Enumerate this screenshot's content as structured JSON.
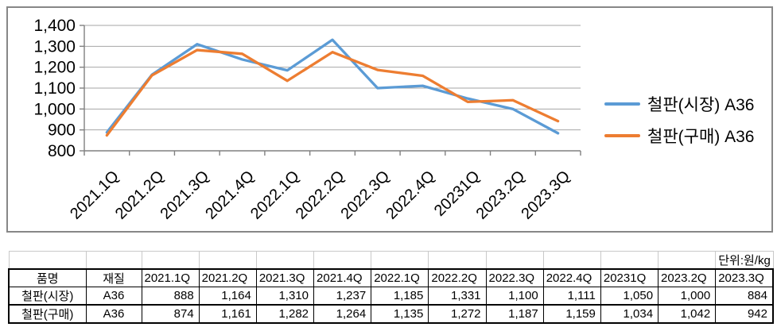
{
  "chart": {
    "legend": [
      {
        "label": "철판(시장) A36"
      },
      {
        "label": "철판(구매) A36"
      }
    ]
  },
  "chart_data": {
    "type": "line",
    "categories": [
      "2021.1Q",
      "2021.2Q",
      "2021.3Q",
      "2021.4Q",
      "2022.1Q",
      "2022.2Q",
      "2022.3Q",
      "2022.4Q",
      "20231Q",
      "2023.2Q",
      "2023.3Q"
    ],
    "series": [
      {
        "name": "철판(시장) A36",
        "color": "#5B9BD5",
        "values": [
          888,
          1164,
          1310,
          1237,
          1185,
          1331,
          1100,
          1111,
          1050,
          1000,
          884
        ]
      },
      {
        "name": "철판(구매) A36",
        "color": "#ED7D31",
        "values": [
          874,
          1161,
          1282,
          1264,
          1135,
          1272,
          1187,
          1159,
          1034,
          1042,
          942
        ]
      }
    ],
    "title": "",
    "xlabel": "",
    "ylabel": "",
    "ylim": [
      800,
      1400
    ],
    "ytick_step": 100,
    "yticks": [
      800,
      900,
      1000,
      1100,
      1200,
      1300,
      1400
    ],
    "grid": true,
    "legend_position": "right",
    "axis_color": "#808080",
    "grid_color": "#A6A6A6"
  },
  "table": {
    "unit_label": "단위:원/kg",
    "columns": [
      "품명",
      "재질",
      "2021.1Q",
      "2021.2Q",
      "2021.3Q",
      "2021.4Q",
      "2022.1Q",
      "2022.2Q",
      "2022.3Q",
      "2022.4Q",
      "20231Q",
      "2023.2Q",
      "2023.3Q"
    ],
    "rows": [
      {
        "name": "철판(시장)",
        "material": "A36",
        "values": [
          "888",
          "1,164",
          "1,310",
          "1,237",
          "1,185",
          "1,331",
          "1,100",
          "1,111",
          "1,050",
          "1,000",
          "884"
        ]
      },
      {
        "name": "철판(구매)",
        "material": "A36",
        "values": [
          "874",
          "1,161",
          "1,282",
          "1,264",
          "1,135",
          "1,272",
          "1,187",
          "1,159",
          "1,034",
          "1,042",
          "942"
        ]
      }
    ]
  }
}
